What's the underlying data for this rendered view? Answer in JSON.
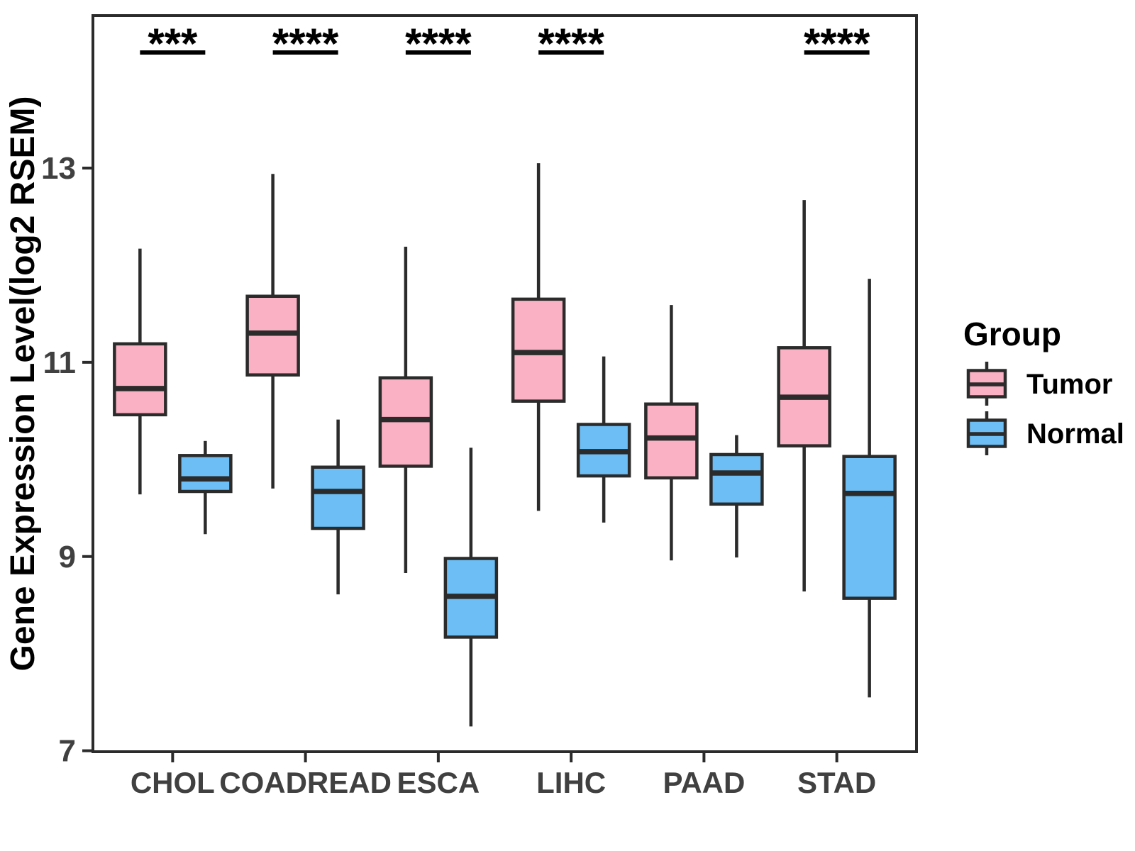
{
  "chart_data": {
    "type": "boxplot",
    "title": "",
    "xlabel": "",
    "ylabel": "Gene Expression Level(log2 RSEM)",
    "categories": [
      "CHOL",
      "COADREAD",
      "ESCA",
      "LIHC",
      "PAAD",
      "STAD"
    ],
    "y_ticks": [
      13,
      11,
      9,
      7
    ],
    "ylim": [
      6.99,
      14.57
    ],
    "grid": false,
    "colors": {
      "tumor_fill": "#FAB1C3",
      "normal_fill": "#6CBEF4",
      "box_stroke": "#2B2B2B",
      "axis_text": "#404040",
      "significance": "#000000"
    },
    "legend": {
      "title": "Group",
      "position": "right",
      "entries": [
        {
          "name": "Tumor",
          "color": "#FAB1C3"
        },
        {
          "name": "Normal",
          "color": "#6CBEF4"
        }
      ]
    },
    "significance": [
      {
        "category": "CHOL",
        "label": "***"
      },
      {
        "category": "COADREAD",
        "label": "****"
      },
      {
        "category": "ESCA",
        "label": "****"
      },
      {
        "category": "LIHC",
        "label": "****"
      },
      {
        "category": "PAAD",
        "label": null
      },
      {
        "category": "STAD",
        "label": "****"
      }
    ],
    "series": [
      {
        "name": "Tumor",
        "color": "#FAB1C3",
        "boxes": [
          {
            "category": "CHOL",
            "low": 9.64,
            "q1": 10.46,
            "median": 10.73,
            "q3": 11.19,
            "high": 12.17
          },
          {
            "category": "COADREAD",
            "low": 9.7,
            "q1": 10.87,
            "median": 11.3,
            "q3": 11.68,
            "high": 12.94
          },
          {
            "category": "ESCA",
            "low": 8.83,
            "q1": 9.93,
            "median": 10.41,
            "q3": 10.84,
            "high": 12.19
          },
          {
            "category": "LIHC",
            "low": 9.47,
            "q1": 10.6,
            "median": 11.1,
            "q3": 11.65,
            "high": 13.05
          },
          {
            "category": "PAAD",
            "low": 8.96,
            "q1": 9.81,
            "median": 10.22,
            "q3": 10.57,
            "high": 11.59
          },
          {
            "category": "STAD",
            "low": 8.64,
            "q1": 10.14,
            "median": 10.64,
            "q3": 11.15,
            "high": 12.67
          }
        ]
      },
      {
        "name": "Normal",
        "color": "#6CBEF4",
        "boxes": [
          {
            "category": "CHOL",
            "low": 9.23,
            "q1": 9.67,
            "median": 9.8,
            "q3": 10.04,
            "high": 10.19
          },
          {
            "category": "COADREAD",
            "low": 8.61,
            "q1": 9.29,
            "median": 9.67,
            "q3": 9.92,
            "high": 10.41
          },
          {
            "category": "ESCA",
            "low": 7.25,
            "q1": 8.17,
            "median": 8.59,
            "q3": 8.98,
            "high": 10.12
          },
          {
            "category": "LIHC",
            "low": 9.35,
            "q1": 9.83,
            "median": 10.08,
            "q3": 10.36,
            "high": 11.06
          },
          {
            "category": "PAAD",
            "low": 8.99,
            "q1": 9.54,
            "median": 9.86,
            "q3": 10.05,
            "high": 10.25
          },
          {
            "category": "STAD",
            "low": 7.55,
            "q1": 8.57,
            "median": 9.65,
            "q3": 10.03,
            "high": 11.86
          }
        ]
      }
    ]
  }
}
